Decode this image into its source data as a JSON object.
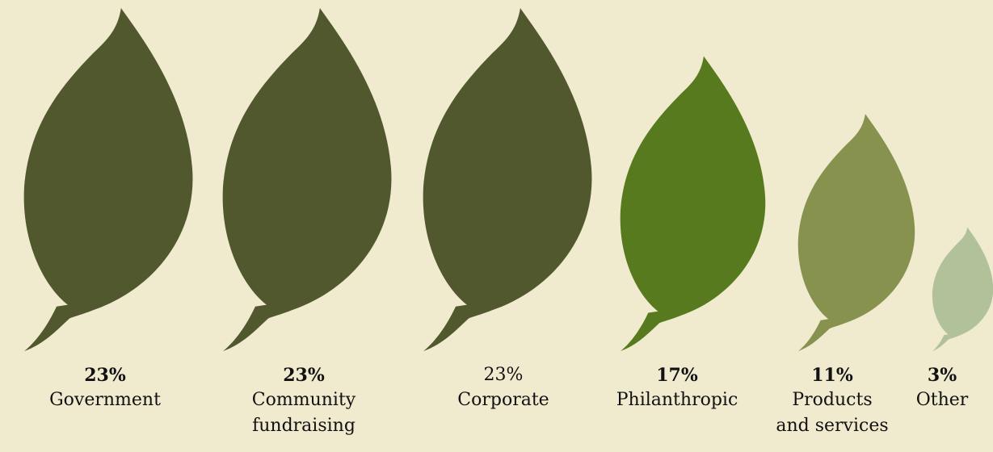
{
  "chart_data": {
    "type": "pictograph",
    "title": "",
    "categories": [
      {
        "label_lines": [
          "Government"
        ],
        "value": 23,
        "value_label": "23%",
        "color": "#51582e"
      },
      {
        "label_lines": [
          "Community",
          "fundraising"
        ],
        "value": 23,
        "value_label": "23%",
        "color": "#51582e"
      },
      {
        "label_lines": [
          "Corporate"
        ],
        "value": 23,
        "value_label": "23%",
        "color": "#51582e"
      },
      {
        "label_lines": [
          "Philanthropic"
        ],
        "value": 17,
        "value_label": "17%",
        "color": "#587a1e"
      },
      {
        "label_lines": [
          "Products",
          "and services"
        ],
        "value": 11,
        "value_label": "11%",
        "color": "#88924f"
      },
      {
        "label_lines": [
          "Other"
        ],
        "value": 3,
        "value_label": "3%",
        "color": "#b1c29b"
      }
    ],
    "value_unit": "%"
  }
}
